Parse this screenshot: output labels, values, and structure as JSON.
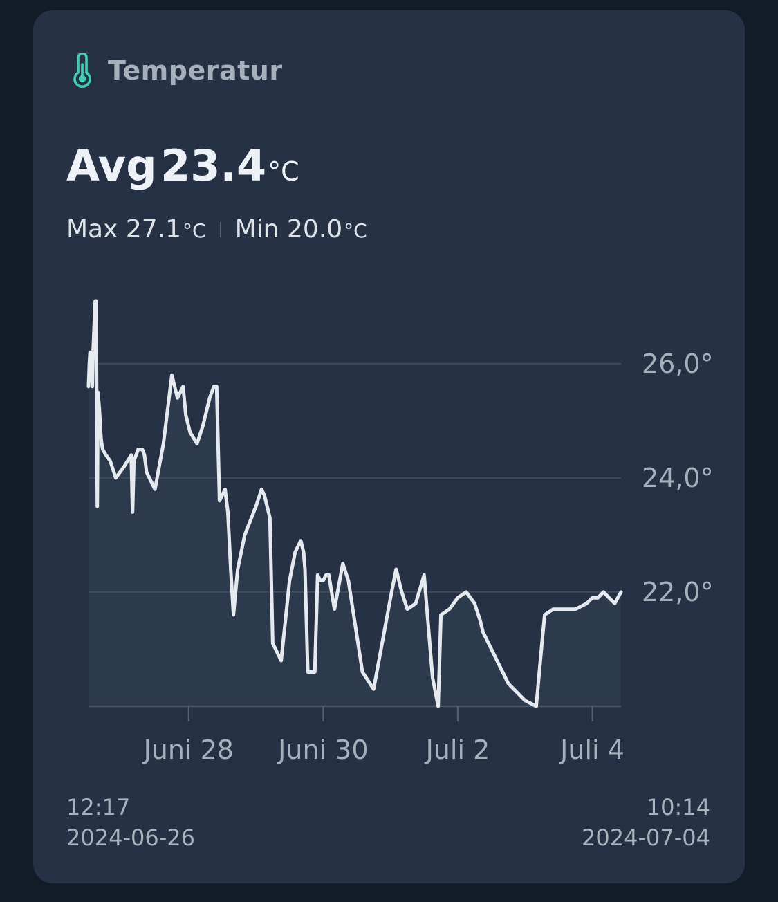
{
  "card": {
    "title": "Temperatur",
    "icon": "thermometer-icon",
    "accent_color": "#3fd1b3"
  },
  "stats": {
    "avg_label": "Avg",
    "avg_value": "23.4",
    "unit": "°C",
    "max_label": "Max",
    "max_value": "27.1",
    "min_label": "Min",
    "min_value": "20.0"
  },
  "range": {
    "start_time": "12:17",
    "start_date": "2024-06-26",
    "end_time": "10:14",
    "end_date": "2024-07-04"
  },
  "chart_data": {
    "type": "line",
    "line_color": "#e6e9ee",
    "fill_color": "#2d3a4b",
    "grid": true,
    "ylim": [
      20.0,
      27.1
    ],
    "yticks": [
      {
        "value": 22.0,
        "label": "22,0°"
      },
      {
        "value": 24.0,
        "label": "24,0°"
      },
      {
        "value": 26.0,
        "label": "26,0°"
      }
    ],
    "xticks": [
      {
        "value": "2024-06-28",
        "label": "Juni 28"
      },
      {
        "value": "2024-06-30",
        "label": "Juni 30"
      },
      {
        "value": "2024-07-02",
        "label": "Juli 2"
      },
      {
        "value": "2024-07-04",
        "label": "Juli 4"
      }
    ],
    "series": [
      {
        "x": [
          "2024-06-26 12:17",
          "2024-06-26 12:35",
          "2024-06-26 12:50",
          "2024-06-26 13:20",
          "2024-06-26 13:40",
          "2024-06-26 13:55",
          "2024-06-26 14:20",
          "2024-06-26 14:40",
          "2024-06-26 15:00",
          "2024-06-26 15:25",
          "2024-06-26 15:40",
          "2024-06-26 16:10",
          "2024-06-26 16:30",
          "2024-06-26 16:45",
          "2024-06-26 17:00",
          "2024-06-26 17:20",
          "2024-06-26 18:30",
          "2024-06-26 20:00",
          "2024-06-26 22:00",
          "2024-06-27 01:00",
          "2024-06-27 03:30",
          "2024-06-27 04:00",
          "2024-06-27 04:30",
          "2024-06-27 06:00",
          "2024-06-27 07:30",
          "2024-06-27 08:15",
          "2024-06-27 08:45",
          "2024-06-27 09:00",
          "2024-06-27 12:00",
          "2024-06-27 15:00",
          "2024-06-27 18:00",
          "2024-06-27 20:00",
          "2024-06-27 22:00",
          "2024-06-27 23:00",
          "2024-06-28 00:30",
          "2024-06-28 03:00",
          "2024-06-28 05:00",
          "2024-06-28 07:30",
          "2024-06-28 09:00",
          "2024-06-28 10:00",
          "2024-06-28 11:00",
          "2024-06-28 13:00",
          "2024-06-28 14:00",
          "2024-06-28 15:00",
          "2024-06-28 16:00",
          "2024-06-28 17:30",
          "2024-06-28 20:00",
          "2024-06-29 00:00",
          "2024-06-29 02:00",
          "2024-06-29 03:00",
          "2024-06-29 05:00",
          "2024-06-29 06:00",
          "2024-06-29 09:00",
          "2024-06-29 12:00",
          "2024-06-29 14:00",
          "2024-06-29 16:00",
          "2024-06-29 17:00",
          "2024-06-29 17:30",
          "2024-06-29 18:30",
          "2024-06-29 21:00",
          "2024-06-29 22:00",
          "2024-06-29 23:00",
          "2024-06-30 00:00",
          "2024-06-30 01:00",
          "2024-06-30 02:00",
          "2024-06-30 04:00",
          "2024-06-30 07:00",
          "2024-06-30 09:00",
          "2024-06-30 14:00",
          "2024-06-30 18:00",
          "2024-07-01 00:00",
          "2024-07-01 02:00",
          "2024-07-01 04:00",
          "2024-07-01 06:00",
          "2024-07-01 09:00",
          "2024-07-01 12:00",
          "2024-07-01 15:00",
          "2024-07-01 17:00",
          "2024-07-01 18:00",
          "2024-07-01 21:00",
          "2024-07-02 00:00",
          "2024-07-02 03:00",
          "2024-07-02 06:00",
          "2024-07-02 08:00",
          "2024-07-02 09:00",
          "2024-07-02 12:00",
          "2024-07-02 14:00",
          "2024-07-02 18:00",
          "2024-07-02 22:00",
          "2024-07-03 00:00",
          "2024-07-03 04:00",
          "2024-07-03 06:00",
          "2024-07-03 07:00",
          "2024-07-03 10:00",
          "2024-07-03 14:00",
          "2024-07-03 18:00",
          "2024-07-03 22:00",
          "2024-07-04 00:00",
          "2024-07-04 02:00",
          "2024-07-04 04:00",
          "2024-07-04 06:00",
          "2024-07-04 08:00",
          "2024-07-04 10:14"
        ],
        "y": [
          25.6,
          26.0,
          26.2,
          26.1,
          25.6,
          26.2,
          26.7,
          27.1,
          27.1,
          23.5,
          25.5,
          25.2,
          24.9,
          24.7,
          24.6,
          24.5,
          24.4,
          24.3,
          24.0,
          24.2,
          24.4,
          23.4,
          24.3,
          24.5,
          24.5,
          24.4,
          24.2,
          24.1,
          23.8,
          24.6,
          25.8,
          25.4,
          25.6,
          25.1,
          24.8,
          24.6,
          24.9,
          25.4,
          25.6,
          25.6,
          23.6,
          23.8,
          23.4,
          22.4,
          21.6,
          22.4,
          23.0,
          23.5,
          23.8,
          23.7,
          23.3,
          21.1,
          20.8,
          22.2,
          22.7,
          22.9,
          22.7,
          22.4,
          20.6,
          20.6,
          22.3,
          22.2,
          22.2,
          22.3,
          22.3,
          21.7,
          22.5,
          22.2,
          20.6,
          20.3,
          21.9,
          22.4,
          22.0,
          21.7,
          21.8,
          22.3,
          20.5,
          20.0,
          21.6,
          21.7,
          21.9,
          22.0,
          21.8,
          21.5,
          21.3,
          21.0,
          20.8,
          20.4,
          20.2,
          20.1,
          20.0,
          21.1,
          21.6,
          21.7,
          21.7,
          21.7,
          21.8,
          21.9,
          21.9,
          22.0,
          21.9,
          21.8,
          22.0
        ]
      }
    ]
  }
}
